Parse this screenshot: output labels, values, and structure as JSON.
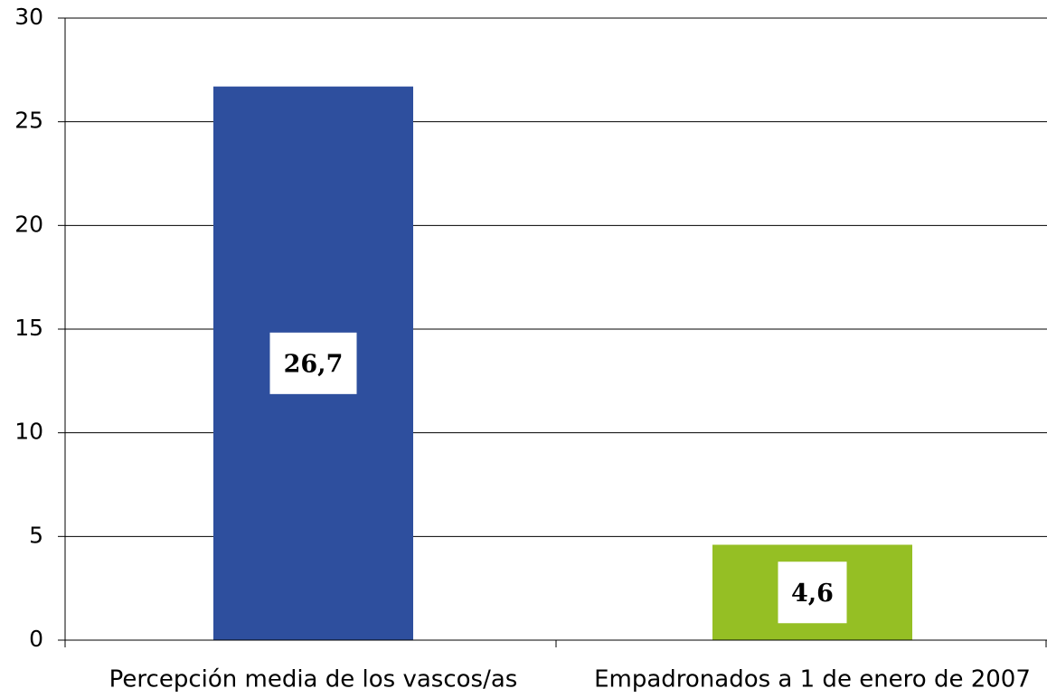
{
  "chart_data": {
    "type": "bar",
    "categories": [
      "Percepción media de los vascos/as",
      "Empadronados a 1 de enero de 2007"
    ],
    "values": [
      26.7,
      4.6
    ],
    "value_labels": [
      "26,7",
      "4,6"
    ],
    "colors": [
      "#2e4f9e",
      "#95bf24"
    ],
    "ylim": [
      0,
      30
    ],
    "yticks": [
      0,
      5,
      10,
      15,
      20,
      25,
      30
    ],
    "grid": true
  }
}
